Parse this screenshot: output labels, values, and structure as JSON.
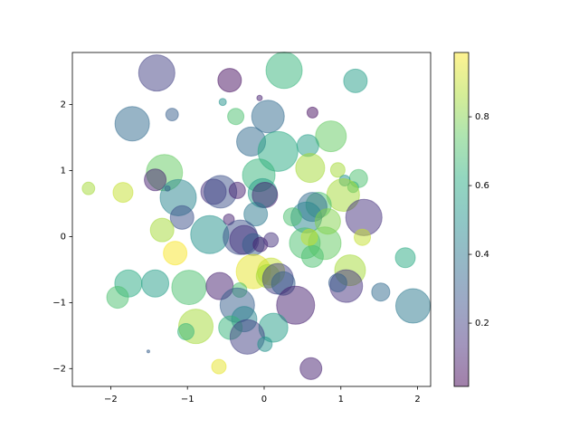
{
  "chart_data": {
    "type": "scatter",
    "colormap": "viridis",
    "alpha": 0.5,
    "x": [
      -1.4,
      -0.45,
      0.26,
      1.19,
      -1.72,
      -1.2,
      -0.54,
      -0.06,
      -0.37,
      0.05,
      0.63,
      0.87,
      -0.17,
      0.57,
      0.18,
      -1.3,
      -1.42,
      -2.29,
      -1.84,
      -1.12,
      -0.66,
      -0.57,
      -0.07,
      -0.35,
      -0.02,
      0.01,
      0.6,
      0.96,
      1.23,
      1.05,
      1.16,
      1.03,
      0.71,
      0.63,
      0.55,
      1.3,
      -1.07,
      0.37,
      -0.11,
      -1.26,
      -1.33,
      -0.71,
      -0.46,
      -0.31,
      -0.26,
      -0.14,
      -0.05,
      0.09,
      0.53,
      0.79,
      0.63,
      1.28,
      1.84,
      -1.16,
      -1.77,
      -1.42,
      -1.91,
      -0.98,
      -0.58,
      -0.14,
      0.09,
      0.05,
      0.18,
      0.25,
      -0.32,
      1.12,
      1.07,
      0.96,
      1.52,
      1.94,
      0.41,
      -0.35,
      -0.26,
      -0.89,
      -1.02,
      -0.44,
      0.12,
      -0.22,
      0.01,
      -0.59,
      0.61,
      -1.51,
      0.83,
      0.59
    ],
    "y": [
      2.48,
      2.37,
      2.52,
      2.36,
      1.71,
      1.85,
      2.04,
      2.1,
      1.82,
      1.82,
      1.88,
      1.52,
      1.44,
      1.38,
      1.29,
      0.97,
      0.86,
      0.73,
      0.67,
      0.59,
      0.68,
      0.68,
      0.93,
      0.7,
      0.66,
      0.63,
      1.04,
      1.01,
      0.88,
      0.85,
      0.75,
      0.63,
      0.48,
      0.45,
      0.29,
      0.29,
      0.29,
      0.3,
      0.34,
      0.73,
      0.1,
      0.03,
      0.26,
      -0.01,
      -0.05,
      -0.12,
      -0.12,
      -0.05,
      -0.1,
      -0.1,
      -0.3,
      -0.01,
      -0.32,
      -0.25,
      -0.71,
      -0.71,
      -0.92,
      -0.77,
      -0.75,
      -0.53,
      -0.53,
      -0.6,
      -0.64,
      -0.71,
      -0.81,
      -0.51,
      -0.75,
      -0.7,
      -0.84,
      -1.05,
      -1.04,
      -1.04,
      -1.25,
      -1.36,
      -1.44,
      -1.38,
      -1.38,
      -1.52,
      -1.63,
      -1.97,
      -2.0,
      -1.74,
      0.23,
      -0.01
    ],
    "sizes": [
      830,
      351,
      830,
      351,
      750,
      100,
      33,
      19,
      168,
      673,
      75,
      600,
      532,
      300,
      1005,
      830,
      300,
      100,
      251,
      830,
      407,
      673,
      673,
      168,
      532,
      407,
      532,
      133,
      208,
      75,
      75,
      673,
      407,
      532,
      600,
      830,
      351,
      208,
      351,
      19,
      351,
      915,
      75,
      750,
      532,
      300,
      133,
      133,
      600,
      673,
      300,
      168,
      251,
      351,
      467,
      467,
      300,
      750,
      467,
      750,
      467,
      351,
      600,
      351,
      133,
      600,
      673,
      208,
      208,
      750,
      915,
      750,
      407,
      750,
      168,
      351,
      532,
      750,
      133,
      133,
      300,
      5,
      407,
      168
    ],
    "colors": [
      0.2,
      0.05,
      0.65,
      0.55,
      0.35,
      0.3,
      0.5,
      0.1,
      0.7,
      0.35,
      0.05,
      0.75,
      0.35,
      0.55,
      0.6,
      0.75,
      0.1,
      0.85,
      0.9,
      0.45,
      0.15,
      0.25,
      0.65,
      0.1,
      0.55,
      0.1,
      0.85,
      0.85,
      0.7,
      0.5,
      0.65,
      0.85,
      0.7,
      0.35,
      0.45,
      0.15,
      0.25,
      0.7,
      0.4,
      0.3,
      0.85,
      0.5,
      0.1,
      0.25,
      0.15,
      0.3,
      0.1,
      0.15,
      0.7,
      0.75,
      0.7,
      0.9,
      0.6,
      0.98,
      0.6,
      0.55,
      0.7,
      0.7,
      0.1,
      0.95,
      0.9,
      0.85,
      0.2,
      0.3,
      0.7,
      0.85,
      0.15,
      0.3,
      0.35,
      0.4,
      0.1,
      0.3,
      0.45,
      0.85,
      0.65,
      0.65,
      0.55,
      0.2,
      0.5,
      0.95,
      0.1,
      0.3,
      0.8,
      0.9
    ],
    "xlim": [
      -2.5,
      2.17
    ],
    "ylim": [
      -2.27,
      2.79
    ],
    "xticks": [
      {
        "value": -2,
        "label": "−2"
      },
      {
        "value": -1,
        "label": "−1"
      },
      0,
      1,
      2
    ],
    "yticks": [
      {
        "value": -2,
        "label": "−2"
      },
      {
        "value": -1,
        "label": "−1"
      },
      0,
      1,
      2
    ],
    "clim": [
      0.016,
      0.987
    ],
    "cticks": [
      0.2,
      0.4,
      0.6,
      0.8
    ]
  }
}
